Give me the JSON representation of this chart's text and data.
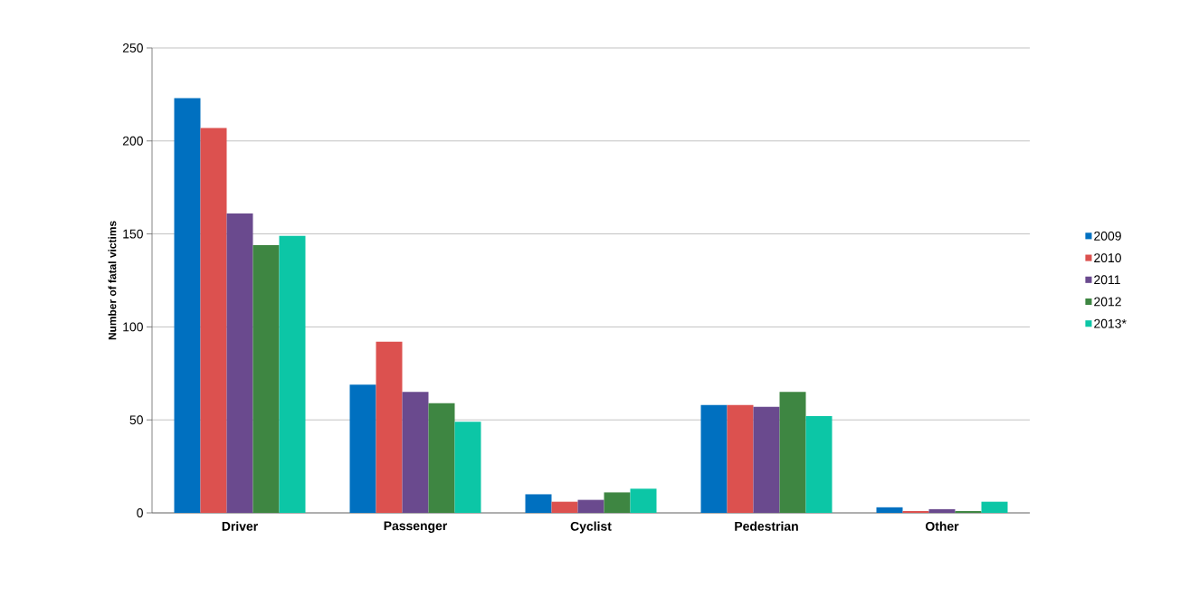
{
  "chart_data": {
    "type": "bar",
    "ylabel": "Number of fatal victims",
    "categories": [
      "Driver",
      "Passenger",
      "Cyclist",
      "Pedestrian",
      "Other"
    ],
    "series": [
      {
        "name": "2009",
        "color": "#0070c0",
        "values": [
          223,
          69,
          10,
          58,
          3
        ]
      },
      {
        "name": "2010",
        "color": "#dc514f",
        "values": [
          207,
          92,
          6,
          58,
          1
        ]
      },
      {
        "name": "2011",
        "color": "#6a4a8e",
        "values": [
          161,
          65,
          7,
          57,
          2
        ]
      },
      {
        "name": "2012",
        "color": "#3e8642",
        "values": [
          144,
          59,
          11,
          65,
          1
        ]
      },
      {
        "name": "2013*",
        "color": "#0cc6a6",
        "values": [
          149,
          49,
          13,
          52,
          6
        ]
      }
    ],
    "ylim": [
      0,
      250
    ],
    "yticks": [
      0,
      50,
      100,
      150,
      200,
      250
    ],
    "grid": "y",
    "legend": "right"
  }
}
